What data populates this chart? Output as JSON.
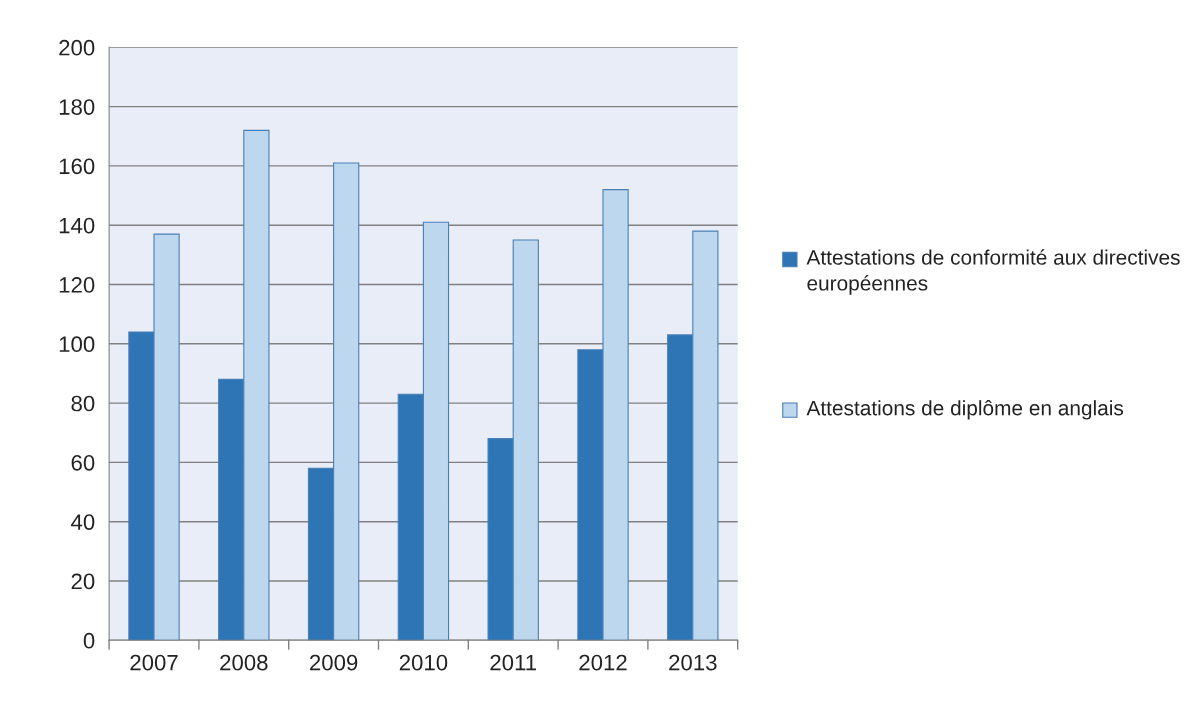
{
  "chart_data": {
    "type": "bar",
    "categories": [
      "2007",
      "2008",
      "2009",
      "2010",
      "2011",
      "2012",
      "2013"
    ],
    "series": [
      {
        "name": "Attestations de conformité aux directives européennes",
        "color": "#2e75b6",
        "values": [
          104,
          88,
          58,
          83,
          68,
          98,
          103
        ]
      },
      {
        "name": "Attestations de diplôme en anglais",
        "color": "#bdd7ee",
        "values": [
          137,
          172,
          161,
          141,
          135,
          152,
          138
        ]
      }
    ],
    "ylim": [
      0,
      200
    ],
    "yticks": [
      0,
      20,
      40,
      60,
      80,
      100,
      120,
      140,
      160,
      180,
      200
    ],
    "grid": "y",
    "legend": "right"
  }
}
